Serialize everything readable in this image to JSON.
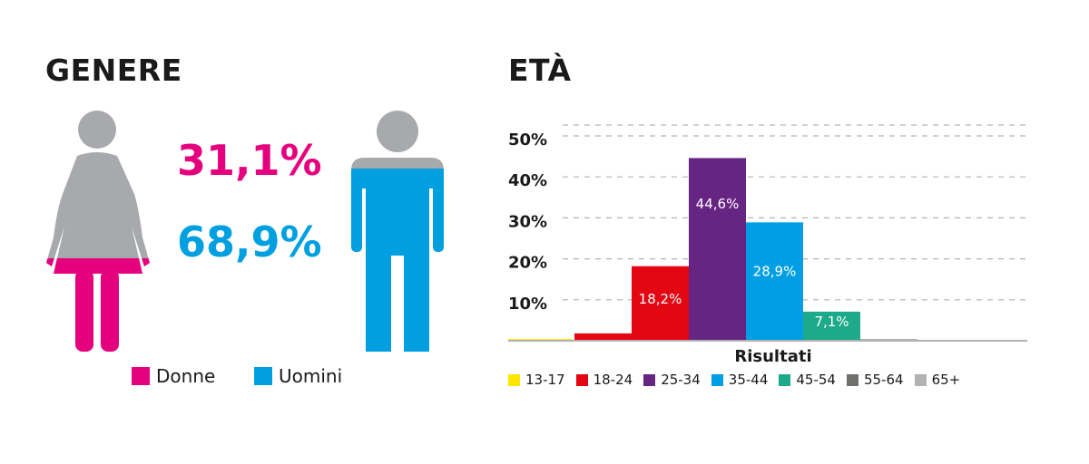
{
  "gender": {
    "title": "GENERE",
    "women": {
      "percent": "31,1%",
      "label": "Donne",
      "color": "#e5007e",
      "share": 0.311
    },
    "men": {
      "percent": "68,9%",
      "label": "Uomini",
      "color": "#00a0e0",
      "share": 0.689
    },
    "figure_base_color": "#a7a9ac",
    "icons": [
      "woman-icon",
      "man-icon"
    ]
  },
  "age": {
    "title": "ETÀ"
  },
  "chart_data": [
    {
      "type": "pie",
      "title": "GENERE",
      "categories": [
        "Donne",
        "Uomini"
      ],
      "values": [
        31.1,
        68.9
      ],
      "colors": [
        "#e5007e",
        "#00a0e0"
      ]
    },
    {
      "type": "bar",
      "title": "ETÀ",
      "xlabel": "Risultati",
      "ylabel": "",
      "categories": [
        "13-17",
        "18-24",
        "25-34",
        "35-44",
        "45-54",
        "55-64",
        "65+"
      ],
      "values": [
        0.4,
        1.8,
        18.2,
        44.6,
        28.9,
        7.1,
        0.4
      ],
      "note_values": "first and last pairs partly merged visually",
      "data_labels": [
        "",
        "",
        "18,2%",
        "44,6%",
        "28,9%",
        "7,1%",
        ""
      ],
      "ylim": [
        0,
        50
      ],
      "yticks": [
        "10%",
        "20%",
        "30%",
        "40%",
        "50%"
      ],
      "grid": true,
      "legend_position": "bottom",
      "colors": [
        "#ffe600",
        "#e30613",
        "#e30613",
        "#662483",
        "#009fe3",
        "#1daa8a",
        "#b2b2b2"
      ],
      "legend": [
        {
          "label": "13-17",
          "color": "#ffe600"
        },
        {
          "label": "18-24",
          "color": "#e30613"
        },
        {
          "label": "25-34",
          "color": "#662483"
        },
        {
          "label": "35-44",
          "color": "#009fe3"
        },
        {
          "label": "45-54",
          "color": "#1daa8a"
        },
        {
          "label": "55-64",
          "color": "#6f6f6e"
        },
        {
          "label": "65+",
          "color": "#b2b2b2"
        }
      ]
    }
  ]
}
